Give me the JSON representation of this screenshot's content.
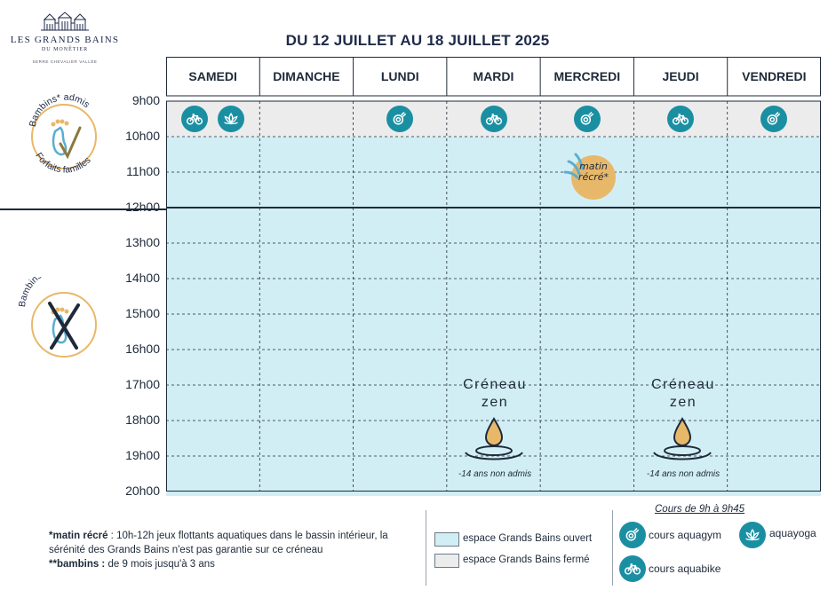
{
  "logo": {
    "title": "LES GRANDS BAINS",
    "subtitle": "DU MONÊTIER",
    "tagline": "SERRE CHEVALIER VALLÉE"
  },
  "headline": "DU 12 JUILLET AU 18 JUILLET 2025",
  "days": [
    "SAMEDI",
    "DIMANCHE",
    "LUNDI",
    "MARDI",
    "MERCREDI",
    "JEUDI",
    "VENDREDI"
  ],
  "hours": [
    "9h00",
    "10h00",
    "11h00",
    "12h00",
    "13h00",
    "14h00",
    "15h00",
    "16h00",
    "17h00",
    "18h00",
    "19h00",
    "20h00"
  ],
  "schedule_icons": [
    {
      "day": 0,
      "type": "bike-icon"
    },
    {
      "day": 0,
      "type": "lotus-icon",
      "offset": 1
    },
    {
      "day": 2,
      "type": "dumbbell-icon"
    },
    {
      "day": 3,
      "type": "bike-icon"
    },
    {
      "day": 4,
      "type": "dumbbell-icon"
    },
    {
      "day": 5,
      "type": "bike-icon"
    },
    {
      "day": 6,
      "type": "dumbbell-icon"
    }
  ],
  "matin_recre": {
    "line1": "matin",
    "line2": "récré*"
  },
  "zen_slots": [
    {
      "day": "MARDI",
      "line1": "Créneau",
      "line2": "zen",
      "note": "-14 ans non admis"
    },
    {
      "day": "JEUDI",
      "line1": "Créneau",
      "line2": "zen",
      "note": "-14 ans non admis"
    }
  ],
  "badges": {
    "admitted": {
      "top": "Bambins* admis",
      "bottom": "Forfaits familles"
    },
    "not_admitted": {
      "top": "Bambins* non admis"
    }
  },
  "legend": {
    "recre_term": "*matin récré",
    "recre_desc": " : 10h-12h jeux flottants aquatiques dans le bassin intérieur, la sérénité des Grands Bains n'est pas garantie sur ce créneau",
    "bambins_term": "**bambins :",
    "bambins_desc": " de 9 mois jusqu'à 3 ans",
    "open_label": "espace Grands Bains ouvert",
    "closed_label": "espace Grands Bains fermé",
    "courses_title": "Cours de 9h à 9h45",
    "aquagym": "cours aquagym",
    "aquayoga": "aquayoga",
    "aquabike": "cours aquabike"
  },
  "colors": {
    "open": "#d2eef5",
    "closed": "#ececec",
    "accent": "#1b8fa2",
    "badge_gold": "#e8b86a",
    "navy": "#1e2a4a"
  }
}
